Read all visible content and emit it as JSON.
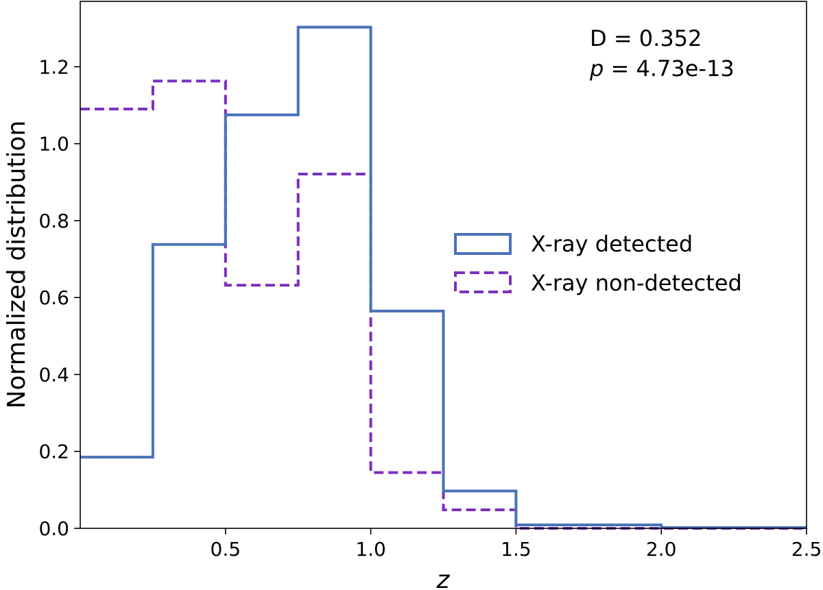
{
  "chart_data": {
    "type": "histogram-step",
    "xlabel": "z",
    "ylabel": "Normalized distribution",
    "xlim": [
      0.0,
      2.5
    ],
    "ylim": [
      0.0,
      1.37
    ],
    "xticks": [
      0.5,
      1.0,
      1.5,
      2.0,
      2.5
    ],
    "xtick_labels": [
      "0.5",
      "1.0",
      "1.5",
      "2.0",
      "2.5"
    ],
    "yticks": [
      0.0,
      0.2,
      0.4,
      0.6,
      0.8,
      1.0,
      1.2
    ],
    "ytick_labels": [
      "0.0",
      "0.2",
      "0.4",
      "0.6",
      "0.8",
      "1.0",
      "1.2"
    ],
    "bin_edges": [
      0.0,
      0.25,
      0.5,
      0.75,
      1.0,
      1.25,
      1.5,
      1.75,
      2.0,
      2.25,
      2.5
    ],
    "series": [
      {
        "name": "X-ray detected",
        "color": "#4a72b8",
        "style": "solid",
        "values": [
          0.185,
          0.738,
          1.075,
          1.303,
          0.565,
          0.097,
          0.009,
          0.009,
          0.002,
          0.002
        ]
      },
      {
        "name": "X-ray non-detected",
        "color": "#7b2fbe",
        "style": "dashed",
        "values": [
          1.09,
          1.163,
          0.632,
          0.921,
          0.145,
          0.048,
          0.0,
          0.0,
          0.0,
          0.0
        ]
      }
    ],
    "annotations": {
      "d_stat": "D = 0.352",
      "p_symbol": "p",
      "p_value": " = 4.73e-13"
    },
    "legend_position": "center-right",
    "grid": false
  }
}
